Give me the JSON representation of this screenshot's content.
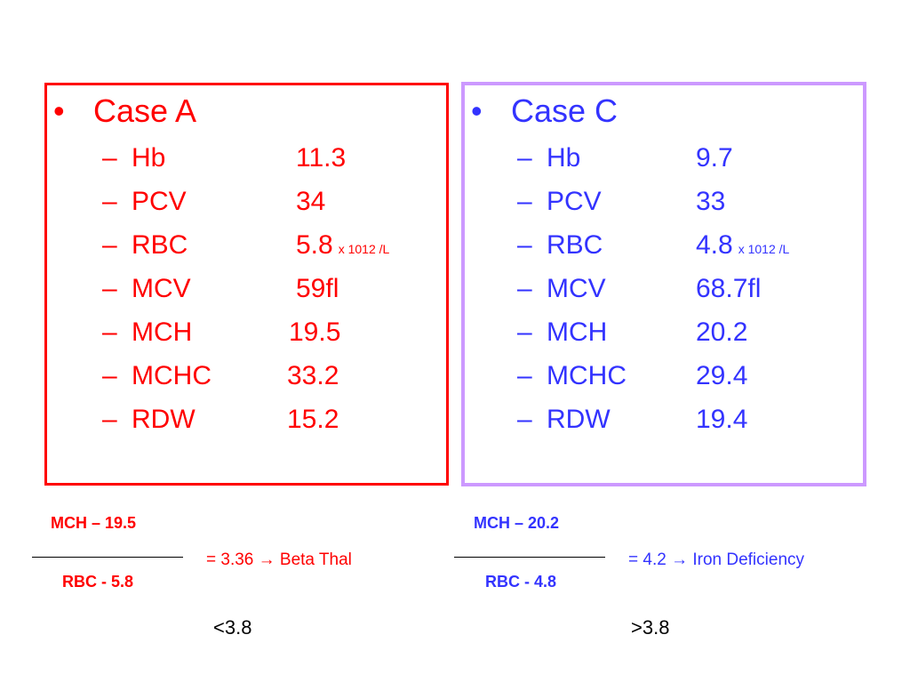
{
  "case_a": {
    "title": "Case A",
    "bullet": "•",
    "rows": [
      {
        "label": "Hb",
        "value": "11.3",
        "unit": ""
      },
      {
        "label": "PCV",
        "value": "34",
        "unit": ""
      },
      {
        "label": "RBC",
        "value": "5.8",
        "unit": "x 1012 /L"
      },
      {
        "label": "MCV",
        "value": "59fl",
        "unit": ""
      },
      {
        "label": "MCH",
        "value": "19.5",
        "unit": ""
      },
      {
        "label": "MCHC",
        "value": "33.2",
        "unit": ""
      },
      {
        "label": "RDW",
        "value": "15.2",
        "unit": ""
      }
    ],
    "formula": {
      "numerator": "MCH – 19.5",
      "denominator": "RBC - 5.8",
      "result": "= 3.36 → Beta Thal",
      "threshold": "<3.8"
    }
  },
  "case_c": {
    "title": "Case C",
    "bullet": "•",
    "rows": [
      {
        "label": "Hb",
        "value": "9.7",
        "unit": ""
      },
      {
        "label": "PCV",
        "value": "33",
        "unit": ""
      },
      {
        "label": "RBC",
        "value": "4.8",
        "unit": "x 1012 /L"
      },
      {
        "label": "MCV",
        "value": "68.7fl",
        "unit": ""
      },
      {
        "label": "MCH",
        "value": "20.2",
        "unit": ""
      },
      {
        "label": "MCHC",
        "value": "29.4",
        "unit": ""
      },
      {
        "label": "RDW",
        "value": "19.4",
        "unit": ""
      }
    ],
    "formula": {
      "numerator": "MCH – 20.2",
      "denominator": "RBC - 4.8",
      "result": "= 4.2 → Iron Deficiency",
      "threshold": ">3.8"
    }
  },
  "dash": "–",
  "colors": {
    "case_a": "#ff0000",
    "case_c": "#3333ff",
    "box_a_border": "#ff0000",
    "box_c_border": "#cc99ff"
  }
}
